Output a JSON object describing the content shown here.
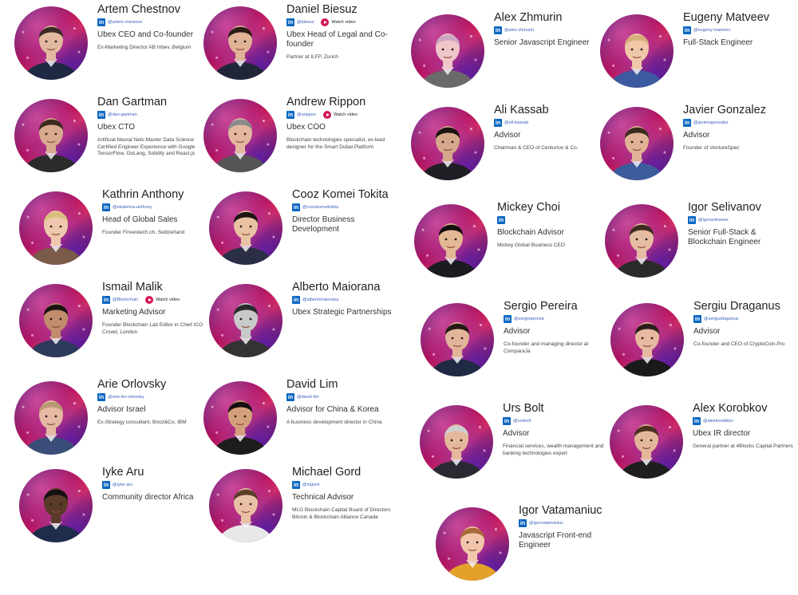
{
  "team": [
    {
      "name": "Artem Chestnov",
      "handle": "@artem-chestnov",
      "video": false,
      "role": "Ubex CEO and Co-founder",
      "desc": "Ex-Marketing Director AB Inbev, Belgium",
      "skin": "#e2b9a0",
      "hair": "#3a2c22",
      "shirt": "#1e2a44"
    },
    {
      "name": "Daniel Biesuz",
      "handle": "@biesuz",
      "video": true,
      "video_label": "Watch video",
      "role": "Ubex Head of Legal and Co-founder",
      "desc": "Partner at ILFP, Zurich",
      "skin": "#e0b296",
      "hair": "#2a1d16",
      "shirt": "#20263a"
    },
    {
      "name": "Dan Gartman",
      "handle": "@dan-gartman",
      "video": false,
      "role": "Ubex CTO",
      "desc": "Artificial Neural Nets Master Data Science Certified Engineer Experience with Google TensorFlow, GoLang, Solidity and React.js",
      "skin": "#d9a98e",
      "hair": "#3b2a1e",
      "shirt": "#2b2b2b"
    },
    {
      "name": "Andrew Rippon",
      "handle": "@arippon",
      "video": true,
      "video_label": "Watch video",
      "role": "Ubex COO",
      "desc": "Blockchain technologies specialist, ex-lead designer for the Smart Dubai Platform",
      "skin": "#e4b7a1",
      "hair": "#8a8a8a",
      "shirt": "#555555"
    },
    {
      "name": "Kathrin Anthony",
      "handle": "@ekaterina-anthony",
      "video": false,
      "role": "Head of Global Sales",
      "desc": "Founder Finvestech.ch, Switzerland",
      "skin": "#efc7ae",
      "hair": "#d8c07a",
      "shirt": "#7a5a48"
    },
    {
      "name": "Cooz Komei Tokita",
      "handle": "@coozkomeitokita",
      "video": false,
      "role": "Director Business Development",
      "desc": "",
      "skin": "#e8c2a2",
      "hair": "#1e1712",
      "shirt": "#2a2f45"
    },
    {
      "name": "Ismail Malik",
      "handle": "@Blockchain",
      "video": true,
      "video_label": "Watch video",
      "role": "Marketing Advisor",
      "desc": "Founder Blockchain Lab Editor in Chief ICO Crowd, London",
      "skin": "#c08c6c",
      "hair": "#1b1410",
      "shirt": "#2c3a5c"
    },
    {
      "name": "Alberto Maiorana",
      "handle": "@albertomaiorana",
      "video": false,
      "role": "Ubex Strategic Partnerships",
      "desc": "",
      "skin": "#c9c9c9",
      "hair": "#2a2a2a",
      "shirt": "#333333"
    },
    {
      "name": "Arie Orlovsky",
      "handle": "@arie-lev-orlovsky",
      "video": false,
      "role": "Advisor Israel",
      "desc": "Ex-Strategy consultant, Booz&Co, IBM",
      "skin": "#e5b9a3",
      "hair": "#b89a72",
      "shirt": "#3a4d78"
    },
    {
      "name": "David Lim",
      "handle": "@david-lim",
      "video": false,
      "role": "Advisor for China & Korea",
      "desc": "A business development director in China",
      "skin": "#d4a07c",
      "hair": "#151010",
      "shirt": "#1c1c1c"
    },
    {
      "name": "Iyke Aru",
      "handle": "@iyke-aru",
      "video": false,
      "role": "Community director Africa",
      "desc": "",
      "skin": "#5a3a28",
      "hair": "#141010",
      "shirt": "#1f2c4a"
    },
    {
      "name": "Michael Gord",
      "handle": "@mgord",
      "video": false,
      "role": "Technical Advisor",
      "desc": "MLG Blockchain Capital Board of Directors Bitcoin & Blockchain Alliance Canada",
      "skin": "#e9c0a6",
      "hair": "#5a3e2a",
      "shirt": "#e8e8e8"
    },
    {
      "name": "Alex Zhmurin",
      "handle": "@alex-zhmurin",
      "video": false,
      "role": "Senior Javascript Engineer",
      "desc": "",
      "skin": "#f0c6c8",
      "hair": "#c9a7c0",
      "shirt": "#6a6a6a"
    },
    {
      "name": "Eugeny Matveev",
      "handle": "@eugeny-matveev",
      "video": false,
      "role": "Full-Stack Engineer",
      "desc": "",
      "skin": "#f0c7a8",
      "hair": "#d4b07a",
      "shirt": "#3c5aa0"
    },
    {
      "name": "Ali Kassab",
      "handle": "@ali-kassab",
      "video": false,
      "role": "Advisor",
      "desc": "Chairman & CEO of Centurion & Co.",
      "skin": "#d6a88a",
      "hair": "#1c1410",
      "shirt": "#1e1e24"
    },
    {
      "name": "Javier Gonzalez",
      "handle": "@javieregonzalez",
      "video": false,
      "role": "Advisor",
      "desc": "Founder of VentureSpec",
      "skin": "#e1b296",
      "hair": "#3a2a20",
      "shirt": "#3d5c9c"
    },
    {
      "name": "Mickey Choi",
      "handle": "",
      "video": false,
      "role": "Blockchain Advisor",
      "desc": "Mickey Global Business CEO",
      "skin": "#e3b894",
      "hair": "#151010",
      "shirt": "#1b1b22"
    },
    {
      "name": "Igor Selivanov",
      "handle": "@igorselivanov",
      "video": false,
      "role": "Senior Full-Stack & Blockchain Engineer",
      "desc": "",
      "skin": "#e6bda3",
      "hair": "#3d2b1f",
      "shirt": "#2a2a2a"
    },
    {
      "name": "Sergio Pereira",
      "handle": "@sergiopereira",
      "video": false,
      "role": "Advisor",
      "desc": "Co-founder and managing director at ComparaJá",
      "skin": "#e2b49a",
      "hair": "#241a14",
      "shirt": "#1f2a44"
    },
    {
      "name": "Sergiu Draganus",
      "handle": "@sergiudraganus",
      "video": false,
      "role": "Advisor",
      "desc": "Co-founder and CEO of CryptoCoin.Pro",
      "skin": "#e7b9a0",
      "hair": "#2a1f18",
      "shirt": "#1a1a1a"
    },
    {
      "name": "Urs Bolt",
      "handle": "@ursbolt",
      "video": false,
      "role": "Advisor",
      "desc": "Financial services, wealth management and banking technologies expert",
      "skin": "#e5b89c",
      "hair": "#cfcfcf",
      "shirt": "#2a2a33"
    },
    {
      "name": "Alex Korobkov",
      "handle": "@alexkorobkov",
      "video": false,
      "role": "Ubex IR director",
      "desc": "General partner at 4Blocks Capital Partners",
      "skin": "#e4b79a",
      "hair": "#4a3020",
      "shirt": "#1e1e1e"
    },
    {
      "name": "Igor Vatamaniuc",
      "handle": "@igorvatamaniuc",
      "video": false,
      "role": "Javascript Front-end Engineer",
      "desc": "",
      "skin": "#f2c5aa",
      "hair": "#a86a3a",
      "shirt": "#e3a12a"
    }
  ]
}
